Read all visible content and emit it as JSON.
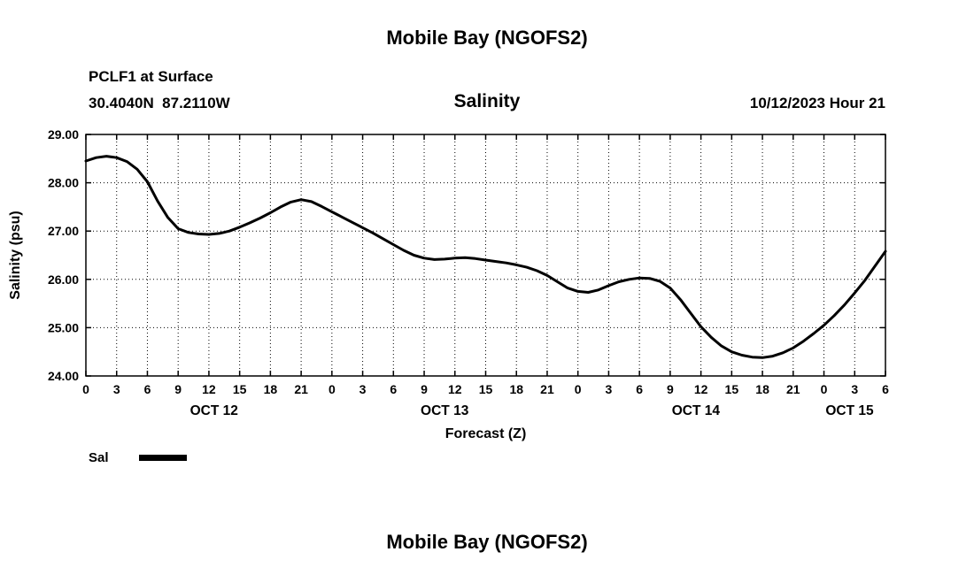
{
  "page": {
    "top_title": "Mobile Bay (NGOFS2)",
    "bottom_title": "Mobile Bay (NGOFS2)"
  },
  "header": {
    "station": "PCLF1 at Surface",
    "coordinates": "30.4040N  87.2110W",
    "subtitle": "Salinity",
    "timestamp": "10/12/2023 Hour 21"
  },
  "legend": {
    "sal_label": "Sal"
  },
  "chart_data": {
    "type": "line",
    "title": "Salinity",
    "subtitle": "Mobile Bay (NGOFS2)",
    "station": "PCLF1 at Surface",
    "location": "30.4040N 87.2110W",
    "run_time": "10/12/2023 Hour 21",
    "xlabel": "Forecast (Z)",
    "ylabel": "Salinity (psu)",
    "xlim": [
      0,
      78
    ],
    "ylim": [
      24,
      29
    ],
    "grid": true,
    "grid_style": "dotted",
    "legend_position": "below-left",
    "line_color": "#000000",
    "xticks": [
      [
        0,
        "0"
      ],
      [
        3,
        "3"
      ],
      [
        6,
        "6"
      ],
      [
        9,
        "9"
      ],
      [
        12,
        "12"
      ],
      [
        15,
        "15"
      ],
      [
        18,
        "18"
      ],
      [
        21,
        "21"
      ],
      [
        24,
        "0"
      ],
      [
        27,
        "3"
      ],
      [
        30,
        "6"
      ],
      [
        33,
        "9"
      ],
      [
        36,
        "12"
      ],
      [
        39,
        "15"
      ],
      [
        42,
        "18"
      ],
      [
        45,
        "21"
      ],
      [
        48,
        "0"
      ],
      [
        51,
        "3"
      ],
      [
        54,
        "6"
      ],
      [
        57,
        "9"
      ],
      [
        60,
        "12"
      ],
      [
        63,
        "15"
      ],
      [
        66,
        "18"
      ],
      [
        69,
        "21"
      ],
      [
        72,
        "0"
      ],
      [
        75,
        "3"
      ],
      [
        78,
        "6"
      ]
    ],
    "yticks": [
      [
        24,
        "24.00"
      ],
      [
        25,
        "25.00"
      ],
      [
        26,
        "26.00"
      ],
      [
        27,
        "27.00"
      ],
      [
        28,
        "28.00"
      ],
      [
        29,
        "29.00"
      ]
    ],
    "date_labels": [
      {
        "label": "OCT 12",
        "hour": 12.5
      },
      {
        "label": "OCT 13",
        "hour": 35
      },
      {
        "label": "OCT 14",
        "hour": 59.5
      },
      {
        "label": "OCT 15",
        "hour": 74.5
      }
    ],
    "series": [
      {
        "name": "Sal",
        "color": "#000000",
        "points": [
          [
            0,
            28.45
          ],
          [
            1,
            28.52
          ],
          [
            2,
            28.55
          ],
          [
            3,
            28.52
          ],
          [
            4,
            28.44
          ],
          [
            5,
            28.28
          ],
          [
            6,
            28.02
          ],
          [
            7,
            27.62
          ],
          [
            8,
            27.28
          ],
          [
            9,
            27.05
          ],
          [
            10,
            26.97
          ],
          [
            11,
            26.94
          ],
          [
            12,
            26.93
          ],
          [
            13,
            26.95
          ],
          [
            14,
            27.0
          ],
          [
            15,
            27.08
          ],
          [
            16,
            27.17
          ],
          [
            17,
            27.27
          ],
          [
            18,
            27.38
          ],
          [
            19,
            27.5
          ],
          [
            20,
            27.6
          ],
          [
            21,
            27.65
          ],
          [
            22,
            27.61
          ],
          [
            23,
            27.51
          ],
          [
            24,
            27.4
          ],
          [
            25,
            27.29
          ],
          [
            26,
            27.18
          ],
          [
            27,
            27.07
          ],
          [
            28,
            26.96
          ],
          [
            29,
            26.84
          ],
          [
            30,
            26.72
          ],
          [
            31,
            26.6
          ],
          [
            32,
            26.5
          ],
          [
            33,
            26.44
          ],
          [
            34,
            26.41
          ],
          [
            35,
            26.42
          ],
          [
            36,
            26.44
          ],
          [
            37,
            26.45
          ],
          [
            38,
            26.43
          ],
          [
            39,
            26.4
          ],
          [
            40,
            26.37
          ],
          [
            41,
            26.34
          ],
          [
            42,
            26.3
          ],
          [
            43,
            26.25
          ],
          [
            44,
            26.18
          ],
          [
            45,
            26.08
          ],
          [
            46,
            25.95
          ],
          [
            47,
            25.82
          ],
          [
            48,
            25.75
          ],
          [
            49,
            25.73
          ],
          [
            50,
            25.78
          ],
          [
            51,
            25.87
          ],
          [
            52,
            25.95
          ],
          [
            53,
            26.0
          ],
          [
            54,
            26.03
          ],
          [
            55,
            26.02
          ],
          [
            56,
            25.96
          ],
          [
            57,
            25.82
          ],
          [
            58,
            25.58
          ],
          [
            59,
            25.3
          ],
          [
            60,
            25.02
          ],
          [
            61,
            24.8
          ],
          [
            62,
            24.62
          ],
          [
            63,
            24.5
          ],
          [
            64,
            24.43
          ],
          [
            65,
            24.39
          ],
          [
            66,
            24.38
          ],
          [
            67,
            24.41
          ],
          [
            68,
            24.48
          ],
          [
            69,
            24.58
          ],
          [
            70,
            24.72
          ],
          [
            71,
            24.88
          ],
          [
            72,
            25.05
          ],
          [
            73,
            25.25
          ],
          [
            74,
            25.47
          ],
          [
            75,
            25.72
          ],
          [
            76,
            25.98
          ],
          [
            77,
            26.28
          ],
          [
            78,
            26.58
          ]
        ]
      }
    ]
  }
}
